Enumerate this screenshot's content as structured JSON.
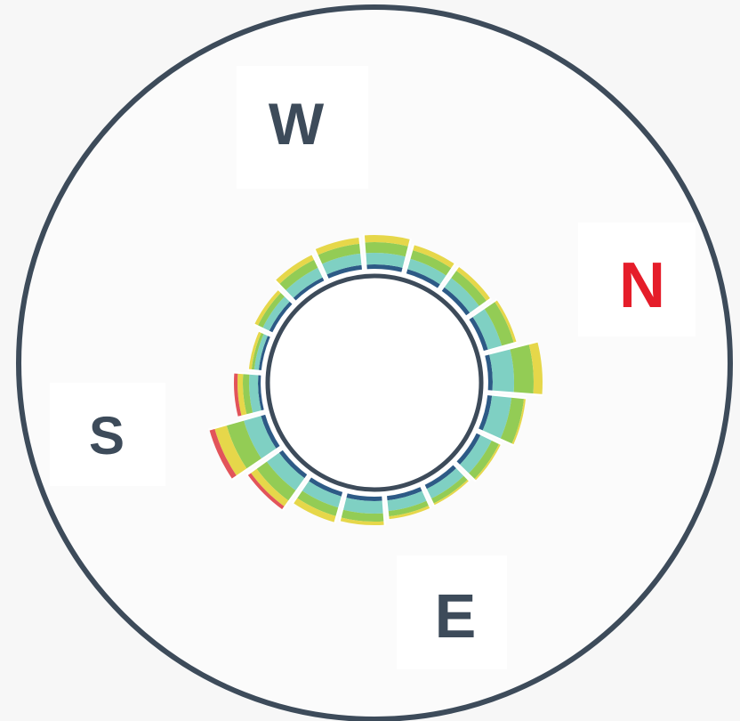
{
  "chart_data": {
    "type": "polar-bar",
    "title": "",
    "compass": {
      "labels": [
        {
          "text": "N",
          "direction": "east-right",
          "color": "#e51d2a"
        },
        {
          "text": "E",
          "direction": "bottom",
          "color": "#3d4b5a"
        },
        {
          "text": "S",
          "direction": "left",
          "color": "#3d4b5a"
        },
        {
          "text": "W",
          "direction": "top",
          "color": "#3d4b5a"
        }
      ]
    },
    "band_colors": [
      "#2d5a86",
      "#7fd0c3",
      "#93cc55",
      "#e6d74a",
      "#e2545a"
    ],
    "sectors": [
      {
        "center_deg": -85,
        "bands": [
          5,
          13,
          12,
          8,
          0
        ]
      },
      {
        "center_deg": -65,
        "bands": [
          5,
          12,
          10,
          6,
          0
        ]
      },
      {
        "center_deg": -45,
        "bands": [
          5,
          13,
          10,
          5,
          0
        ]
      },
      {
        "center_deg": -25,
        "bands": [
          5,
          16,
          14,
          3,
          0
        ]
      },
      {
        "center_deg": -5,
        "bands": [
          5,
          24,
          22,
          10,
          0
        ]
      },
      {
        "center_deg": 15,
        "bands": [
          5,
          22,
          14,
          2,
          0
        ]
      },
      {
        "center_deg": 35,
        "bands": [
          5,
          14,
          9,
          2,
          0
        ]
      },
      {
        "center_deg": 55,
        "bands": [
          5,
          12,
          6,
          2,
          0
        ]
      },
      {
        "center_deg": 75,
        "bands": [
          5,
          12,
          6,
          3,
          0
        ]
      },
      {
        "center_deg": 95,
        "bands": [
          5,
          14,
          9,
          4,
          0
        ]
      },
      {
        "center_deg": 115,
        "bands": [
          5,
          13,
          10,
          7,
          0
        ]
      },
      {
        "center_deg": 135,
        "bands": [
          5,
          17,
          14,
          8,
          4
        ]
      },
      {
        "center_deg": 155,
        "bands": [
          5,
          20,
          20,
          14,
          6
        ]
      },
      {
        "center_deg": 175,
        "bands": [
          3,
          10,
          7,
          6,
          4
        ]
      },
      {
        "center_deg": 195,
        "bands": [
          3,
          5,
          3,
          3,
          0
        ]
      },
      {
        "center_deg": 215,
        "bands": [
          4,
          8,
          6,
          4,
          0
        ]
      },
      {
        "center_deg": 235,
        "bands": [
          4,
          12,
          10,
          6,
          0
        ]
      },
      {
        "center_deg": 255,
        "bands": [
          5,
          13,
          11,
          7,
          0
        ]
      }
    ]
  }
}
